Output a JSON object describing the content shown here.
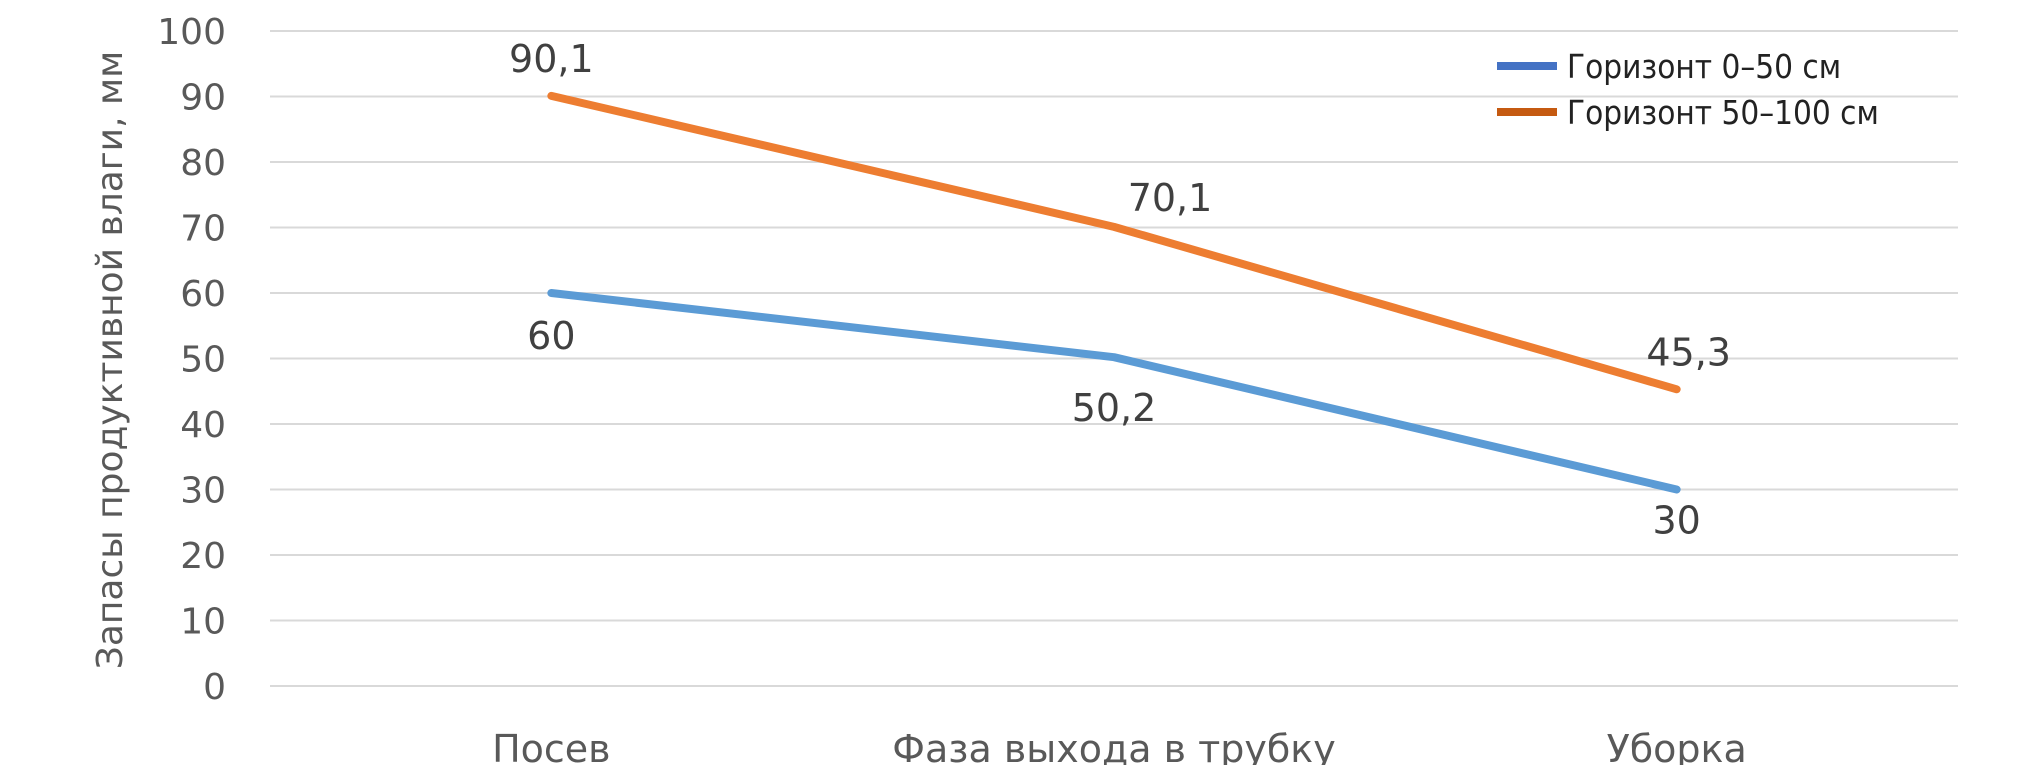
{
  "chart_data": {
    "type": "line",
    "title": "",
    "xlabel": "",
    "ylabel": "Запасы продуктивной влаги, мм",
    "ylim": [
      0,
      100
    ],
    "yticks": [
      0,
      10,
      20,
      30,
      40,
      50,
      60,
      70,
      80,
      90,
      100
    ],
    "grid": true,
    "legend": "top-right",
    "categories": [
      "Посев",
      "Фаза выхода в трубку",
      "Уборка"
    ],
    "series": [
      {
        "name": "Горизонт 0–50 см",
        "color": "#5b9bd5",
        "legend_color": "#4472c4",
        "values": [
          60,
          50.2,
          30
        ],
        "labels": [
          "60",
          "50,2",
          "30"
        ]
      },
      {
        "name": "Горизонт 50–100 см",
        "color": "#ed7d31",
        "legend_color": "#c55a11",
        "values": [
          90.1,
          70.1,
          45.3
        ],
        "labels": [
          "90,1",
          "70,1",
          "45,3"
        ]
      }
    ]
  }
}
